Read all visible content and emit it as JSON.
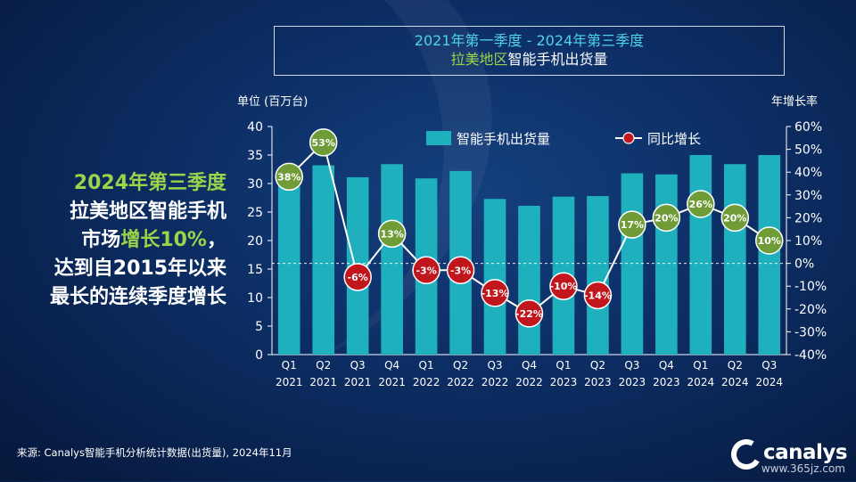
{
  "title": {
    "line1": "2021年第一季度 - 2024年第三季度",
    "line2_green": "拉美地区",
    "line2_white": "智能手机出货量"
  },
  "headline": {
    "line1": "2024年第三季度",
    "line2": "拉美地区智能手机",
    "line3_a": "市场",
    "line3_b": "增长10%",
    "line3_c": "，",
    "line4": "达到自2015年以来",
    "line5": "最长的连续季度增长"
  },
  "source": "来源: Canalys智能手机分析统计数据(出货量), 2024年11月",
  "logo": "canalys",
  "watermark": "www.365jz.com",
  "colors": {
    "bar": "#1fb0be",
    "line": "#ffffff",
    "positive": "#6f9c36",
    "negative": "#c0161c",
    "accent_green": "#9bd34a",
    "accent_cyan": "#4fd3e6"
  },
  "chart_data": {
    "type": "bar",
    "left_axis_label": "单位 (百万台)",
    "right_axis_label": "年增长率",
    "categories": [
      "Q1\n2021",
      "Q2\n2021",
      "Q3\n2021",
      "Q4\n2021",
      "Q1\n2022",
      "Q2\n2022",
      "Q3\n2022",
      "Q4\n2022",
      "Q1\n2023",
      "Q2\n2023",
      "Q3\n2023",
      "Q4\n2023",
      "Q1\n2024",
      "Q2\n2024",
      "Q3\n2024"
    ],
    "series": [
      {
        "name": "智能手机出货量",
        "axis": "left",
        "values": [
          30.2,
          33.2,
          31.1,
          33.4,
          30.9,
          32.2,
          27.3,
          26.1,
          27.7,
          27.8,
          31.8,
          31.6,
          35.0,
          33.4,
          35.0
        ]
      },
      {
        "name": "同比增长",
        "axis": "right",
        "type": "line",
        "values": [
          38,
          53,
          -6,
          13,
          -3,
          -3,
          -13,
          -22,
          -10,
          -14,
          17,
          20,
          26,
          20,
          10
        ],
        "labels": [
          "38%",
          "53%",
          "-6%",
          "13%",
          "-3%",
          "-3%",
          "-13%",
          "-22%",
          "-10%",
          "-14%",
          "17%",
          "20%",
          "26%",
          "20%",
          "10%"
        ]
      }
    ],
    "left_ticks": [
      "0",
      "5",
      "10",
      "15",
      "20",
      "25",
      "30",
      "35",
      "40"
    ],
    "left_range": [
      0,
      40
    ],
    "right_ticks": [
      "-40%",
      "-30%",
      "-20%",
      "-10%",
      "0%",
      "10%",
      "20%",
      "30%",
      "40%",
      "50%",
      "60%"
    ],
    "right_range": [
      -40,
      60
    ],
    "legend_position": "top-center",
    "zero_line": "dashed"
  }
}
